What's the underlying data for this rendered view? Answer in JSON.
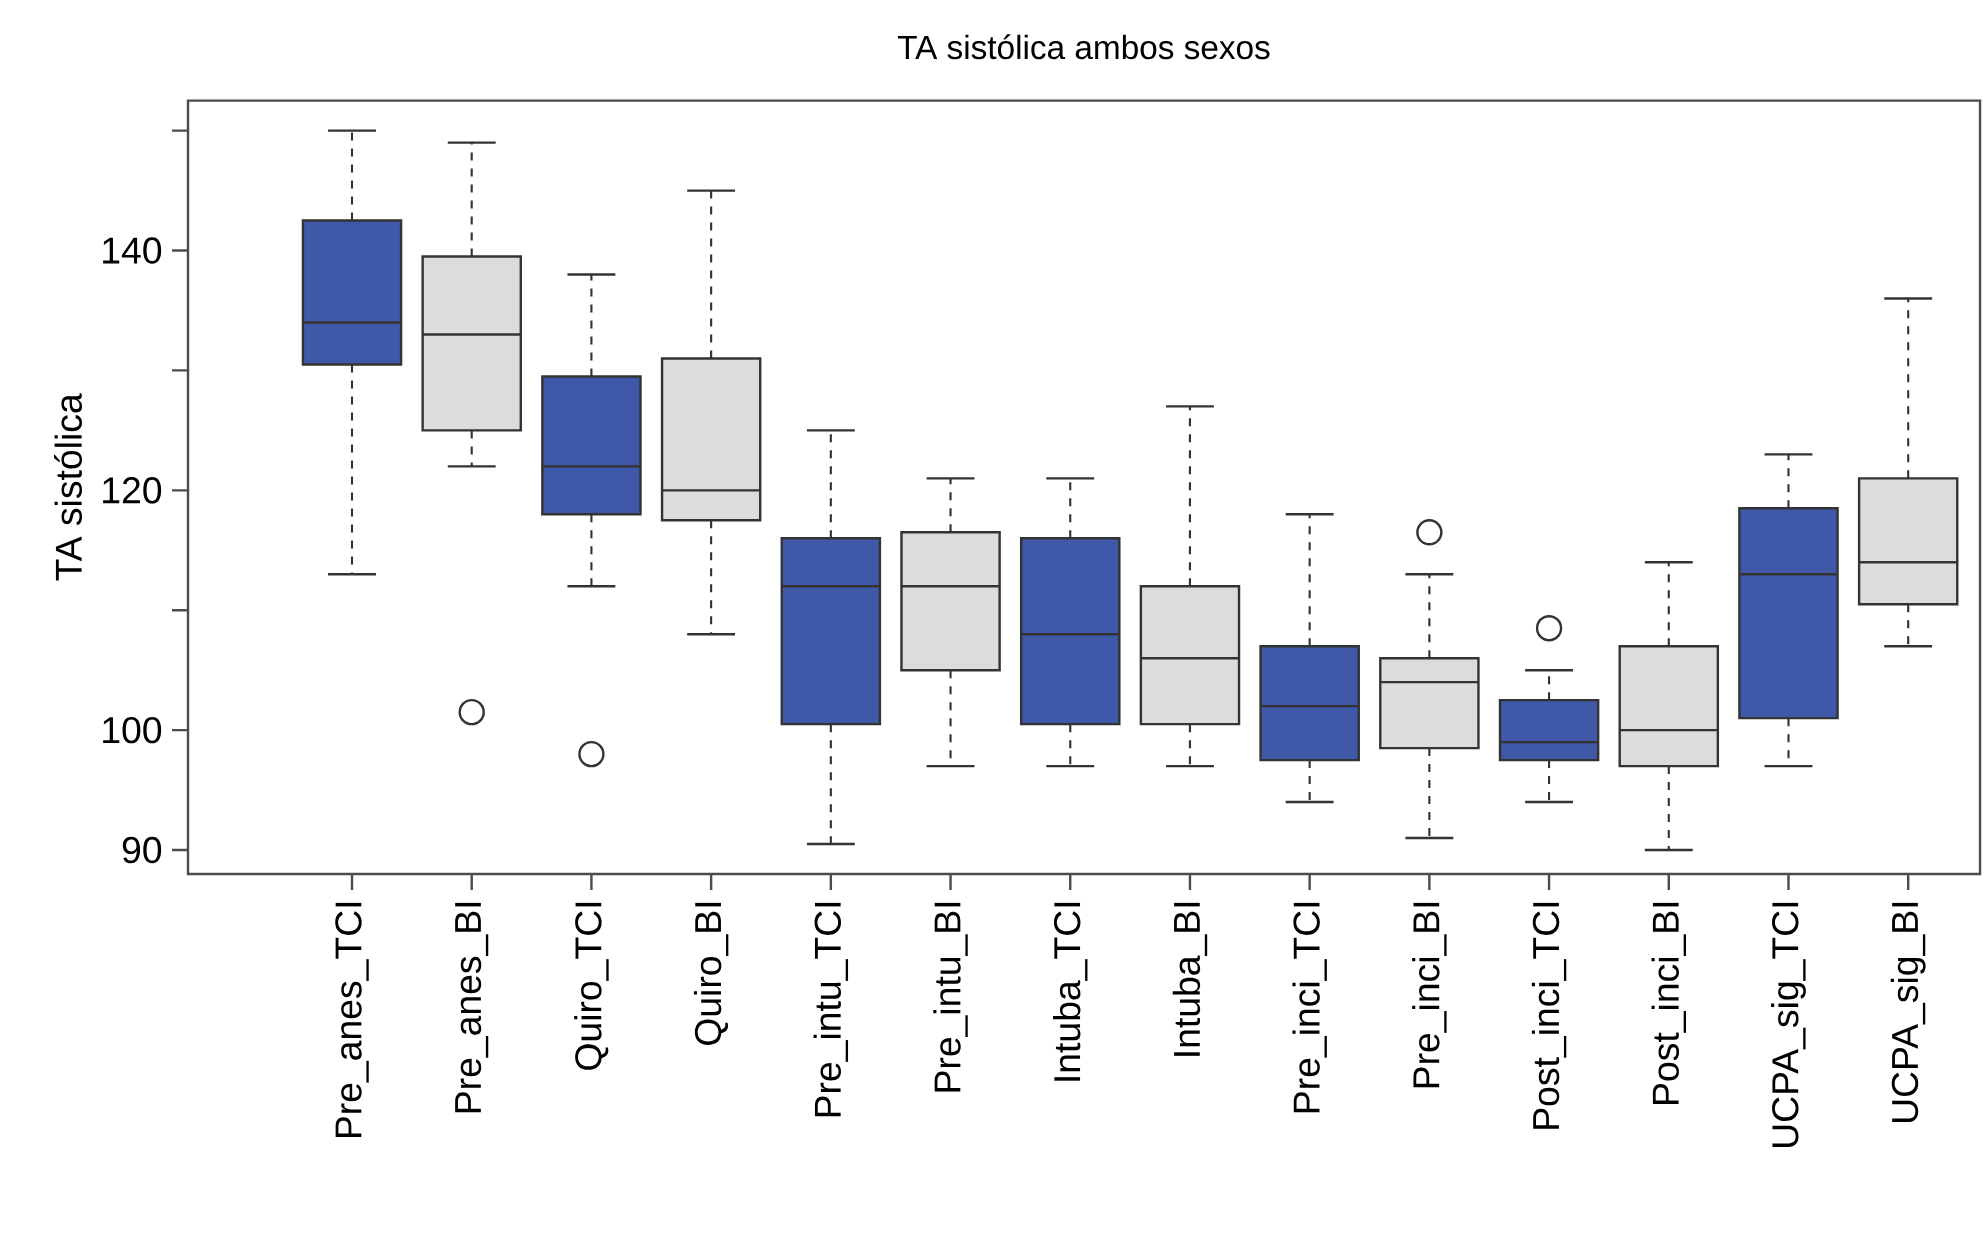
{
  "chart_data": {
    "type": "box",
    "title": "TA sistólica ambos sexos",
    "ylabel": "TA sistólica",
    "categories": [
      "Pre_anes_TCI",
      "Pre_anes_BI",
      "Quiro_TCI",
      "Quiro_BI",
      "Pre_intu_TCI",
      "Pre_intu_BI",
      "Intuba_TCI",
      "Intuba_BI",
      "Pre_inci_TCI",
      "Pre_inci_BI",
      "Post_inci_TCI",
      "Post_inci_BI",
      "UCPA_sig_TCI",
      "UCPA_sig_BI"
    ],
    "colors": [
      "#3f58a8",
      "#dcdcde",
      "#3f58a8",
      "#dcdcde",
      "#3f58a8",
      "#dcdcde",
      "#3f58a8",
      "#dcdcde",
      "#3f58a8",
      "#dcdcde",
      "#3f58a8",
      "#dcdcde",
      "#3f58a8",
      "#dcdcde"
    ],
    "boxes": [
      {
        "low": 113,
        "q1": 130.5,
        "median": 134,
        "q3": 142.5,
        "high": 150
      },
      {
        "low": 122,
        "q1": 125,
        "median": 133,
        "q3": 139.5,
        "high": 149,
        "outliers": [
          101.5
        ]
      },
      {
        "low": 112,
        "q1": 118,
        "median": 122,
        "q3": 129.5,
        "high": 138,
        "outliers": [
          98
        ]
      },
      {
        "low": 108,
        "q1": 117.5,
        "median": 120,
        "q3": 131,
        "high": 145
      },
      {
        "low": 90.5,
        "q1": 100.5,
        "median": 112,
        "q3": 116,
        "high": 125
      },
      {
        "low": 97,
        "q1": 105,
        "median": 112,
        "q3": 116.5,
        "high": 121
      },
      {
        "low": 97,
        "q1": 100.5,
        "median": 108,
        "q3": 116,
        "high": 121
      },
      {
        "low": 97,
        "q1": 100.5,
        "median": 106,
        "q3": 112,
        "high": 127
      },
      {
        "low": 94,
        "q1": 97.5,
        "median": 102,
        "q3": 107,
        "high": 118
      },
      {
        "low": 91,
        "q1": 98.5,
        "median": 104,
        "q3": 106,
        "high": 113,
        "outliers": [
          116.5
        ]
      },
      {
        "low": 94,
        "q1": 97.5,
        "median": 99,
        "q3": 102.5,
        "high": 105,
        "outliers": [
          108.5
        ]
      },
      {
        "low": 90,
        "q1": 97,
        "median": 100,
        "q3": 107,
        "high": 114
      },
      {
        "low": 97,
        "q1": 101,
        "median": 113,
        "q3": 118.5,
        "high": 123
      },
      {
        "low": 107,
        "q1": 110.5,
        "median": 114,
        "q3": 121,
        "high": 136
      }
    ],
    "ylim": [
      88,
      152.5
    ],
    "yticks": [
      90,
      100,
      {
        "value": 110,
        "label": null
      },
      120,
      {
        "value": 130,
        "label": null
      },
      140,
      {
        "value": 150,
        "label": null
      }
    ]
  }
}
